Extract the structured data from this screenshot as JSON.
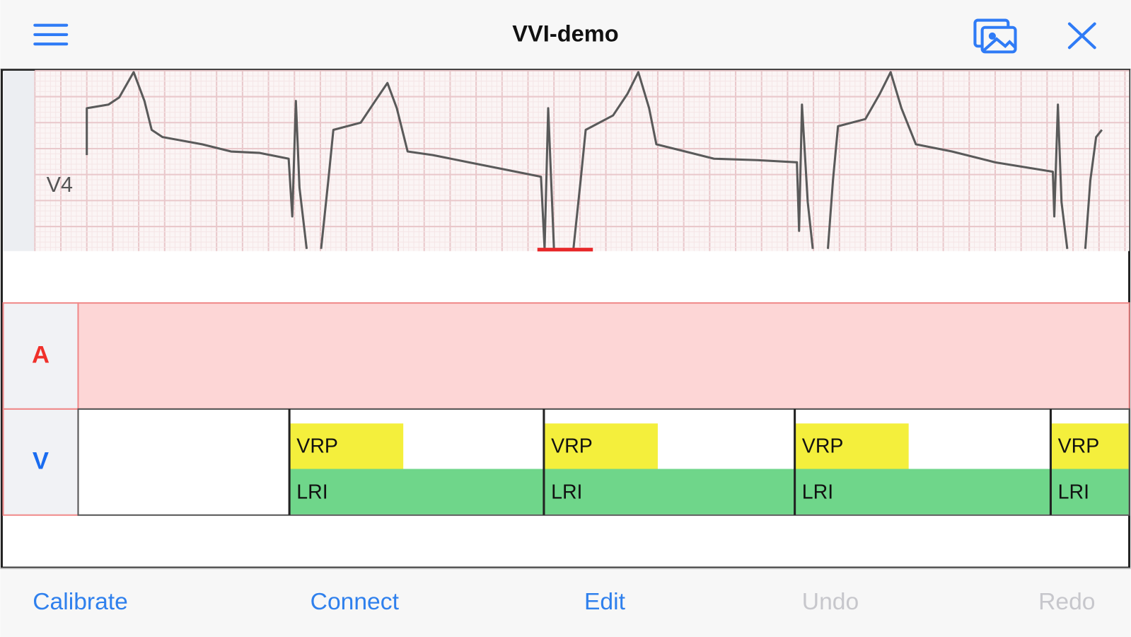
{
  "header": {
    "title": "VVI-demo"
  },
  "ecg": {
    "lead_label": "V4"
  },
  "ladder": {
    "rows": [
      {
        "label": "A"
      },
      {
        "label": "V"
      }
    ],
    "v_intervals": [
      {
        "refractory": "VRP",
        "interval": "LRI"
      },
      {
        "refractory": "VRP",
        "interval": "LRI"
      },
      {
        "refractory": "VRP",
        "interval": "LRI"
      },
      {
        "refractory": "VRP",
        "interval": "LRI"
      }
    ]
  },
  "toolbar": {
    "buttons": [
      {
        "label": "Calibrate",
        "enabled": true
      },
      {
        "label": "Connect",
        "enabled": true
      },
      {
        "label": "Edit",
        "enabled": true
      },
      {
        "label": "Undo",
        "enabled": false
      },
      {
        "label": "Redo",
        "enabled": false
      }
    ]
  }
}
